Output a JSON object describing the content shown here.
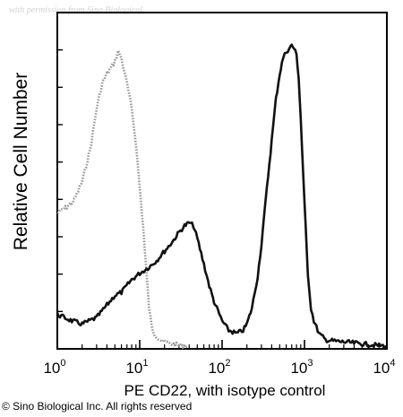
{
  "watermark": "with permission from Sino Biological",
  "copyright": "© Sino Biological Inc. All rights reserved",
  "chart_data": {
    "type": "line",
    "title": "",
    "xlabel": "PE CD22, with isotype control",
    "ylabel": "Relative Cell Number",
    "xscale": "log",
    "xlim": [
      1,
      10000
    ],
    "ylim": [
      0,
      100
    ],
    "grid": false,
    "legend": "none",
    "x_ticks": [
      {
        "base": "10",
        "exp": "0",
        "value": 1
      },
      {
        "base": "10",
        "exp": "1",
        "value": 10
      },
      {
        "base": "10",
        "exp": "2",
        "value": 100
      },
      {
        "base": "10",
        "exp": "3",
        "value": 1000
      },
      {
        "base": "10",
        "exp": "4",
        "value": 10000
      }
    ],
    "series": [
      {
        "style": "dotted-gray",
        "color": "#9a9a9a",
        "x": [
          1,
          1.3,
          1.6,
          2,
          2.5,
          3,
          3.5,
          4,
          4.5,
          5,
          5.5,
          6,
          7,
          8,
          9,
          10,
          11,
          12,
          13,
          14,
          15,
          17,
          19,
          22,
          25,
          30,
          40
        ],
        "y": [
          42,
          44,
          46,
          52,
          62,
          75,
          83,
          86,
          88,
          90,
          93,
          91,
          83,
          75,
          64,
          50,
          38,
          24,
          12,
          6,
          4,
          2.5,
          1.5,
          1,
          0.6,
          0.3,
          0
        ]
      },
      {
        "style": "solid-black",
        "color": "#111111",
        "x": [
          1,
          1.5,
          2,
          3,
          4,
          5,
          6,
          8,
          10,
          13,
          16,
          20,
          25,
          30,
          35,
          40,
          45,
          50,
          60,
          70,
          80,
          100,
          120,
          150,
          180,
          200,
          230,
          270,
          300,
          350,
          400,
          450,
          500,
          550,
          600,
          650,
          700,
          750,
          800,
          850,
          900,
          1000,
          1100,
          1200,
          1300,
          1500,
          1800,
          2500,
          4000,
          6000,
          10000
        ],
        "y": [
          10,
          8,
          7,
          9,
          13,
          16,
          17,
          21,
          23,
          25,
          27,
          30,
          33,
          36,
          38,
          39,
          38,
          34,
          26,
          19,
          14,
          8,
          5,
          4,
          5,
          7,
          12,
          22,
          32,
          50,
          65,
          78,
          86,
          91,
          93,
          94,
          95,
          94,
          92,
          85,
          72,
          45,
          23,
          12,
          8,
          4,
          2,
          1.5,
          1,
          0.5,
          0
        ]
      }
    ]
  }
}
